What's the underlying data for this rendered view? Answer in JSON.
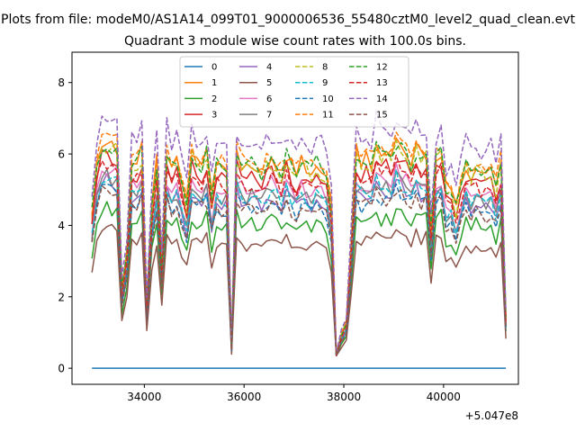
{
  "chart_data": {
    "type": "line",
    "suptitle": "Plots from file: modeM0/AS1A14_099T01_9000006536_55480cztM0_level2_quad_clean.evt",
    "title": "Quadrant 3 module wise count rates with 100.0s bins.",
    "xlabel": "",
    "ylabel": "",
    "x_offset_label": "+5.047e8",
    "xlim": [
      32550,
      41500
    ],
    "ylim": [
      -0.45,
      8.85
    ],
    "x_ticks": [
      34000,
      36000,
      38000,
      40000
    ],
    "x_tick_labels": [
      "34000",
      "36000",
      "38000",
      "40000"
    ],
    "y_ticks": [
      0,
      2,
      4,
      6,
      8
    ],
    "y_tick_labels": [
      "0",
      "2",
      "4",
      "6",
      "8"
    ],
    "legend": {
      "placement": "top-center",
      "columns": 4
    },
    "x_range": {
      "start": 32950,
      "step": 100,
      "count": 84
    },
    "profile": [
      0.68,
      0.9,
      0.98,
      1.0,
      0.99,
      0.97,
      0.35,
      0.5,
      0.92,
      0.9,
      0.95,
      0.27,
      0.72,
      0.9,
      0.45,
      0.95,
      0.88,
      0.9,
      0.82,
      0.72,
      0.95,
      0.9,
      0.9,
      0.94,
      0.75,
      0.9,
      0.88,
      0.88,
      0.1,
      0.95,
      0.9,
      0.88,
      0.9,
      0.88,
      0.86,
      0.9,
      0.92,
      0.9,
      0.86,
      0.93,
      0.88,
      0.85,
      0.9,
      0.88,
      0.86,
      0.9,
      0.88,
      0.85,
      0.7,
      0.06,
      0.15,
      0.2,
      0.55,
      0.95,
      0.9,
      0.92,
      0.9,
      0.98,
      0.92,
      0.95,
      0.93,
      1.0,
      0.96,
      0.95,
      0.9,
      0.96,
      0.92,
      0.95,
      0.6,
      0.92,
      0.95,
      0.78,
      0.8,
      0.7,
      0.82,
      0.9,
      0.85,
      0.9,
      0.86,
      0.85,
      0.88,
      0.8,
      0.9,
      0.22
    ],
    "series": [
      {
        "name": "0",
        "level": 0.0,
        "color": "#1f77b4",
        "dashed": false
      },
      {
        "name": "1",
        "level": 6.4,
        "color": "#ff7f0e",
        "dashed": false
      },
      {
        "name": "2",
        "level": 4.5,
        "color": "#2ca02c",
        "dashed": false
      },
      {
        "name": "3",
        "level": 6.0,
        "color": "#d62728",
        "dashed": false
      },
      {
        "name": "4",
        "level": 5.25,
        "color": "#9467bd",
        "dashed": false
      },
      {
        "name": "5",
        "level": 3.9,
        "color": "#8c564b",
        "dashed": false
      },
      {
        "name": "6",
        "level": 5.6,
        "color": "#e377c2",
        "dashed": false
      },
      {
        "name": "7",
        "level": 5.4,
        "color": "#7f7f7f",
        "dashed": false
      },
      {
        "name": "8",
        "level": 6.25,
        "color": "#bcbd22",
        "dashed": true
      },
      {
        "name": "9",
        "level": 5.35,
        "color": "#17becf",
        "dashed": true
      },
      {
        "name": "10",
        "level": 5.05,
        "color": "#1f77b4",
        "dashed": true
      },
      {
        "name": "11",
        "level": 6.5,
        "color": "#ff7f0e",
        "dashed": true
      },
      {
        "name": "12",
        "level": 6.35,
        "color": "#2ca02c",
        "dashed": true
      },
      {
        "name": "13",
        "level": 5.8,
        "color": "#d62728",
        "dashed": true
      },
      {
        "name": "14",
        "level": 7.1,
        "color": "#9467bd",
        "dashed": true
      },
      {
        "name": "15",
        "level": 5.0,
        "color": "#8c564b",
        "dashed": true
      }
    ]
  }
}
